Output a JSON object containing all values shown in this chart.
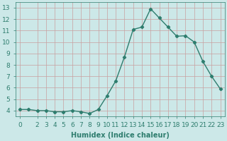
{
  "x": [
    0,
    1,
    2,
    3,
    4,
    5,
    6,
    7,
    8,
    9,
    10,
    11,
    12,
    13,
    14,
    15,
    16,
    17,
    18,
    19,
    20,
    21,
    22,
    23
  ],
  "y": [
    4.1,
    4.1,
    4.0,
    4.0,
    3.9,
    3.9,
    4.0,
    3.9,
    3.75,
    4.1,
    5.3,
    6.6,
    8.7,
    11.1,
    11.3,
    12.9,
    12.1,
    11.3,
    10.5,
    10.55,
    10.0,
    8.3,
    7.0,
    5.9
  ],
  "line_color": "#2e7d6e",
  "marker": "D",
  "marker_size": 2.2,
  "line_width": 1.0,
  "bg_color": "#cce8e8",
  "grid_color_v": "#c8a0a0",
  "grid_color_h": "#c8a0a0",
  "xlabel": "Humidex (Indice chaleur)",
  "xlabel_fontsize": 7,
  "xlim": [
    -0.5,
    23.5
  ],
  "ylim": [
    3.5,
    13.5
  ],
  "yticks": [
    4,
    5,
    6,
    7,
    8,
    9,
    10,
    11,
    12,
    13
  ],
  "xticks": [
    0,
    2,
    3,
    4,
    5,
    6,
    7,
    8,
    9,
    10,
    11,
    12,
    13,
    14,
    15,
    16,
    17,
    18,
    19,
    20,
    21,
    22,
    23
  ],
  "tick_fontsize": 6.5,
  "tick_color": "#2e7d6e",
  "label_color": "#2e7d6e"
}
